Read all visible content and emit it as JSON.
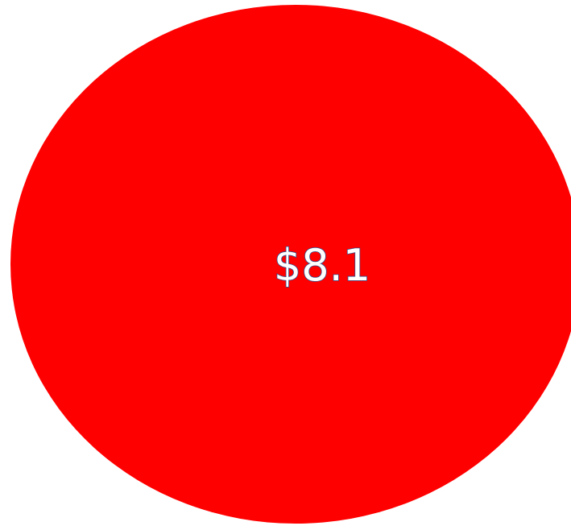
{
  "chart_data": {
    "type": "pie",
    "slices": [
      {
        "label": "$8.1",
        "value": 8.1,
        "color": "#FF0000"
      }
    ],
    "title": "",
    "legend": "none",
    "grid": false
  },
  "colors": {
    "slice_fill": "#FF0000",
    "label_fill": "#FFFFFF",
    "label_stroke": "#2F4F8F"
  }
}
